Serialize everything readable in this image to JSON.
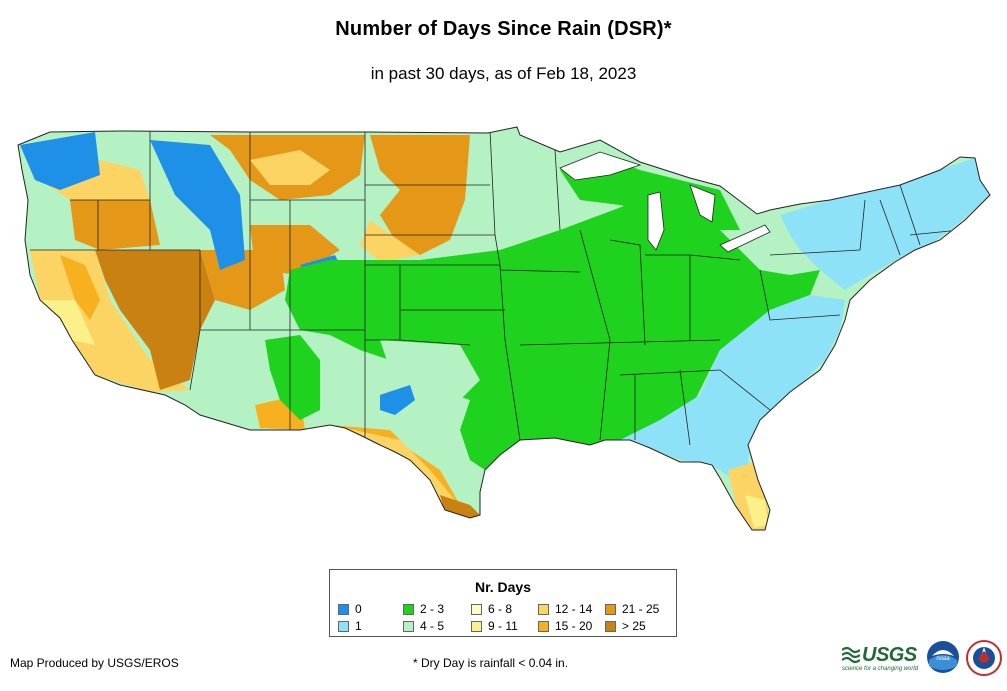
{
  "title": "Number of Days Since Rain (DSR)*",
  "subtitle": "in past 30 days, as of Feb 18, 2023",
  "legend": {
    "title": "Nr. Days",
    "items": [
      {
        "label": "0",
        "color": "#1e90e8"
      },
      {
        "label": "1",
        "color": "#8ee2f7"
      },
      {
        "label": "2 - 3",
        "color": "#1ed21e"
      },
      {
        "label": "4 - 5",
        "color": "#b4f2c4"
      },
      {
        "label": "6 - 8",
        "color": "#fdfcc8"
      },
      {
        "label": "9 - 11",
        "color": "#fbf08a"
      },
      {
        "label": "12 - 14",
        "color": "#fbd464"
      },
      {
        "label": "15 - 20",
        "color": "#f7b020"
      },
      {
        "label": "21 - 25",
        "color": "#e59818"
      },
      {
        "label": "> 25",
        "color": "#c98212"
      }
    ]
  },
  "footer": {
    "credit": "Map Produced by USGS/EROS",
    "note": "* Dry Day is rainfall < 0.04 in."
  },
  "logos": {
    "usgs": "USGS",
    "usgs_tagline": "science for a changing world",
    "noaa": "noaa"
  }
}
